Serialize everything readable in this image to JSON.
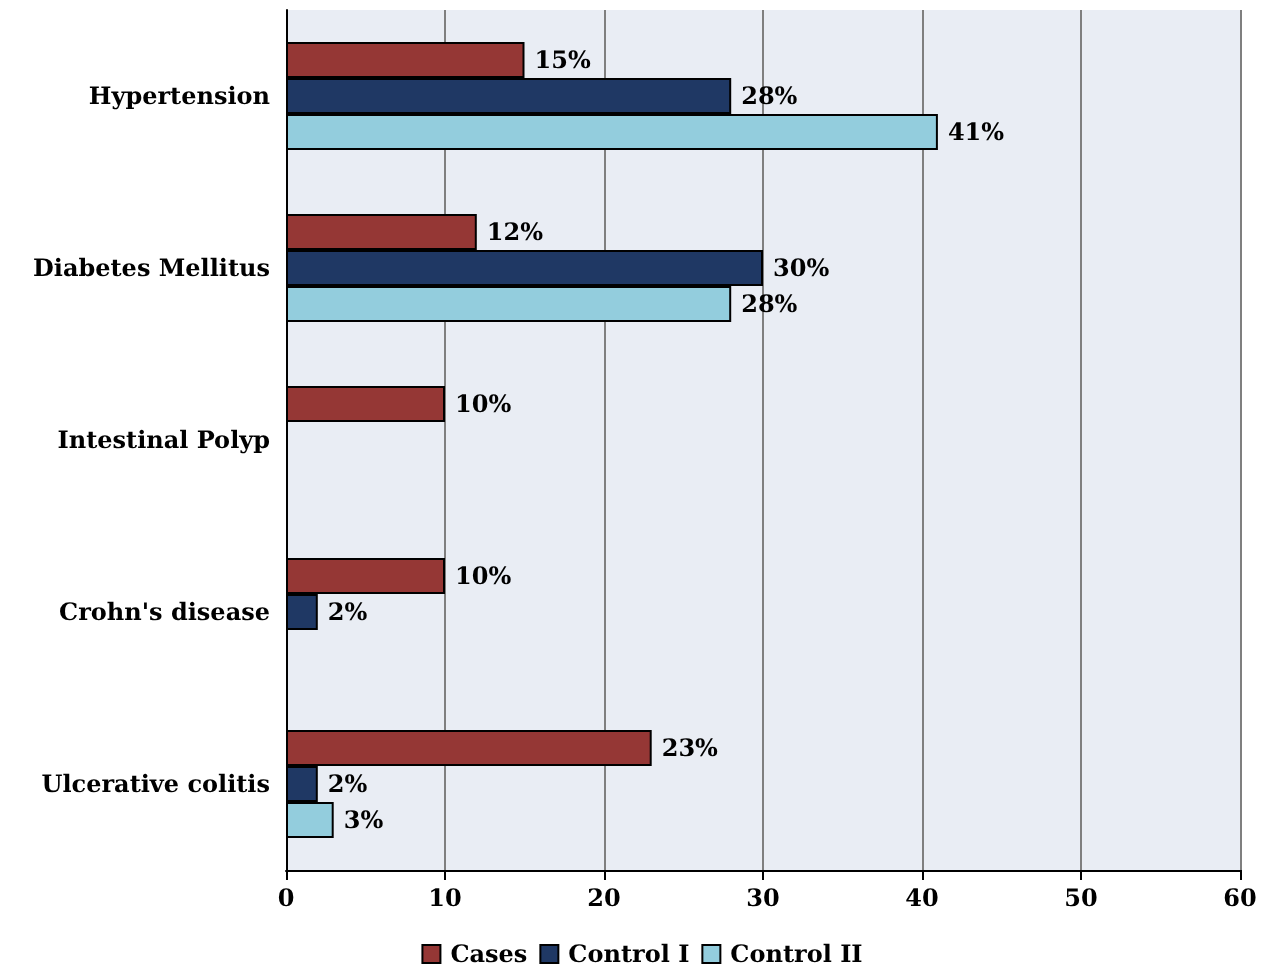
{
  "chart_data": {
    "type": "bar",
    "orientation": "horizontal",
    "categories": [
      "Hypertension",
      "Diabetes Mellitus",
      "Intestinal Polyp",
      "Crohn's disease",
      "Ulcerative colitis"
    ],
    "series": [
      {
        "name": "Cases",
        "color": "#953735",
        "values": [
          15,
          12,
          10,
          10,
          23
        ],
        "value_labels": [
          "15%",
          "12%",
          "10%",
          "10%",
          "23%"
        ]
      },
      {
        "name": "Control I",
        "color": "#1f3864",
        "values": [
          28,
          30,
          null,
          2,
          2
        ],
        "value_labels": [
          "28%",
          "30%",
          null,
          "2%",
          "2%"
        ]
      },
      {
        "name": "Control II",
        "color": "#93cddd",
        "values": [
          41,
          28,
          null,
          null,
          3
        ],
        "value_labels": [
          "41%",
          "28%",
          null,
          null,
          "3%"
        ]
      }
    ],
    "xlim": [
      0,
      60
    ],
    "xticks": [
      0,
      10,
      20,
      30,
      40,
      50,
      60
    ],
    "grid": "x",
    "legend": "bottom"
  }
}
